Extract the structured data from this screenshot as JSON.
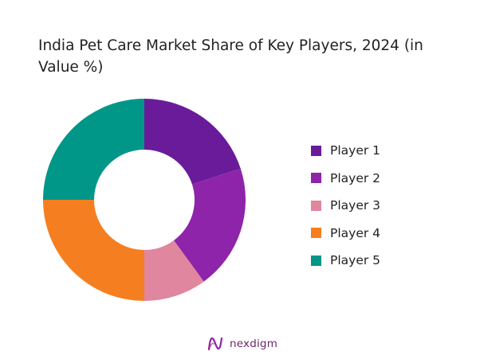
{
  "chart_data": {
    "type": "pie",
    "subtype": "donut",
    "title": "India Pet Care Market Share of Key Players, 2024 (in Value %)",
    "categories": [
      "Player 1",
      "Player 2",
      "Player 3",
      "Player 4",
      "Player 5"
    ],
    "values": [
      20,
      20,
      10,
      25,
      25
    ],
    "unit": "%",
    "colors": [
      "#6a1b9a",
      "#8e24aa",
      "#e0869e",
      "#f57f20",
      "#009688"
    ],
    "start_angle": "12 o'clock",
    "direction": "clockwise",
    "legend_position": "right",
    "data_labels": false
  },
  "brand": {
    "name": "nexdigm",
    "icon": "nexdigm-logo-icon",
    "color": "#6b2a6b"
  }
}
